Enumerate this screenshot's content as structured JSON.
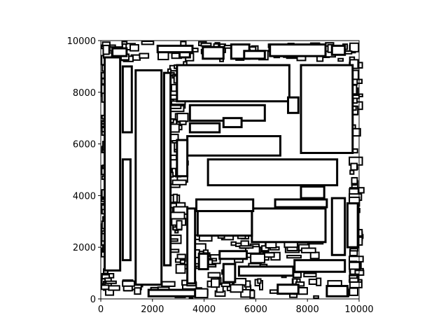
{
  "chart_data": {
    "type": "rectangle-packing",
    "title": "",
    "xlabel": "",
    "ylabel": "",
    "xlim": [
      0,
      10000
    ],
    "ylim": [
      0,
      10000
    ],
    "xticks": [
      0,
      2000,
      4000,
      6000,
      8000,
      10000
    ],
    "yticks": [
      0,
      2000,
      4000,
      6000,
      8000,
      10000
    ],
    "xtick_labels": [
      "0",
      "2000",
      "4000",
      "6000",
      "8000",
      "10000"
    ],
    "ytick_labels": [
      "0",
      "2000",
      "4000",
      "6000",
      "8000",
      "10000"
    ],
    "grid": false,
    "legend": "none",
    "fill_color": "#ffffff",
    "edge_color": "#000000",
    "rectangles": [
      {
        "x0": 2950,
        "y0": 7650,
        "x1": 7300,
        "y1": 9050
      },
      {
        "x0": 7750,
        "y0": 5650,
        "x1": 9750,
        "y1": 9050
      },
      {
        "x0": 4150,
        "y0": 4400,
        "x1": 9150,
        "y1": 5400
      },
      {
        "x0": 3350,
        "y0": 5550,
        "x1": 6950,
        "y1": 6300
      },
      {
        "x0": 3450,
        "y0": 6900,
        "x1": 6350,
        "y1": 7500
      },
      {
        "x0": 5850,
        "y0": 2200,
        "x1": 8700,
        "y1": 3500
      },
      {
        "x0": 3750,
        "y0": 2450,
        "x1": 5850,
        "y1": 3400
      },
      {
        "x0": 1350,
        "y0": 550,
        "x1": 2350,
        "y1": 8850
      },
      {
        "x0": 150,
        "y0": 1100,
        "x1": 750,
        "y1": 9350
      },
      {
        "x0": 850,
        "y0": 6450,
        "x1": 1200,
        "y1": 9000
      },
      {
        "x0": 850,
        "y0": 1500,
        "x1": 1150,
        "y1": 5400
      },
      {
        "x0": 2450,
        "y0": 1300,
        "x1": 2700,
        "y1": 8750
      },
      {
        "x0": 3350,
        "y0": 600,
        "x1": 3650,
        "y1": 3500
      },
      {
        "x0": 8950,
        "y0": 1700,
        "x1": 9450,
        "y1": 3900
      },
      {
        "x0": 9550,
        "y0": 2000,
        "x1": 9950,
        "y1": 3700
      },
      {
        "x0": 3700,
        "y0": 3400,
        "x1": 5900,
        "y1": 3850
      },
      {
        "x0": 6750,
        "y0": 3550,
        "x1": 8750,
        "y1": 3850
      },
      {
        "x0": 7750,
        "y0": 3900,
        "x1": 8650,
        "y1": 4350
      },
      {
        "x0": 5350,
        "y0": 900,
        "x1": 7450,
        "y1": 1250
      },
      {
        "x0": 7500,
        "y0": 1050,
        "x1": 9450,
        "y1": 1500
      },
      {
        "x0": 4750,
        "y0": 650,
        "x1": 5200,
        "y1": 1350
      },
      {
        "x0": 8750,
        "y0": 100,
        "x1": 9550,
        "y1": 500
      },
      {
        "x0": 1850,
        "y0": 100,
        "x1": 3650,
        "y1": 350
      },
      {
        "x0": 3950,
        "y0": 9300,
        "x1": 4750,
        "y1": 9750
      },
      {
        "x0": 5050,
        "y0": 9300,
        "x1": 5750,
        "y1": 9850
      },
      {
        "x0": 6550,
        "y0": 9400,
        "x1": 8700,
        "y1": 9850
      },
      {
        "x0": 8950,
        "y0": 9450,
        "x1": 9450,
        "y1": 9800
      },
      {
        "x0": 4750,
        "y0": 6650,
        "x1": 5450,
        "y1": 7000
      },
      {
        "x0": 3450,
        "y0": 6450,
        "x1": 4600,
        "y1": 6800
      },
      {
        "x0": 7250,
        "y0": 7200,
        "x1": 7650,
        "y1": 7800
      },
      {
        "x0": 2950,
        "y0": 4750,
        "x1": 3350,
        "y1": 6150
      },
      {
        "x0": 5550,
        "y0": 9300,
        "x1": 6350,
        "y1": 9600
      },
      {
        "x0": 3050,
        "y0": 9350,
        "x1": 3450,
        "y1": 9700
      },
      {
        "x0": 6850,
        "y0": 200,
        "x1": 7650,
        "y1": 550
      },
      {
        "x0": 4600,
        "y0": 1550,
        "x1": 5650,
        "y1": 1850
      },
      {
        "x0": 3800,
        "y0": 1150,
        "x1": 4150,
        "y1": 1750
      },
      {
        "x0": 2200,
        "y0": 9550,
        "x1": 3550,
        "y1": 9800
      },
      {
        "x0": 450,
        "y0": 9400,
        "x1": 1000,
        "y1": 9700
      }
    ]
  }
}
